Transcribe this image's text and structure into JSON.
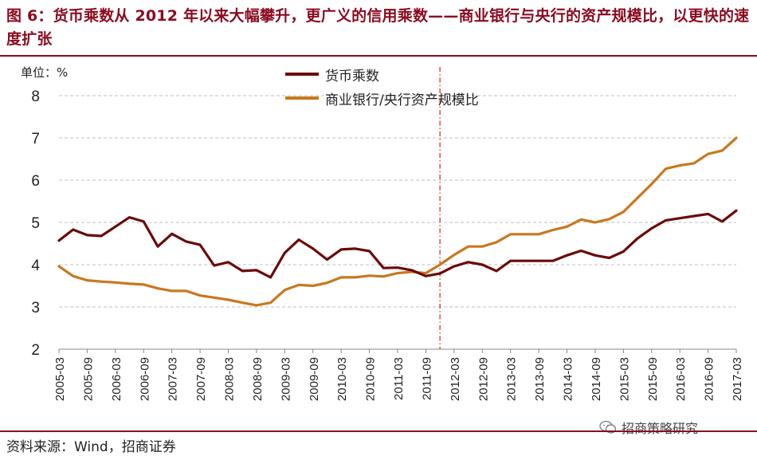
{
  "header": {
    "title": "图 6：货币乘数从 2012 年以来大幅攀升，更广义的信用乘数——商业银行与央行的资产规模比，以更快的速度扩张"
  },
  "footer": {
    "source": "资料来源：Wind，招商证券",
    "watermark": "招商策略研究"
  },
  "colors": {
    "brand": "#8B0A1F",
    "series1": "#6B0A0A",
    "series2": "#C8781E",
    "marker": "#D62020",
    "grid": "#BFBFBF"
  },
  "chart_data": {
    "type": "line",
    "unit_label": "单位：%",
    "ylim": [
      2,
      8
    ],
    "yticks": [
      "2",
      "3",
      "4",
      "5",
      "6",
      "7",
      "8"
    ],
    "grid": true,
    "x_tick_labels": [
      "2005-03",
      "2005-09",
      "2006-03",
      "2006-09",
      "2007-03",
      "2007-09",
      "2008-03",
      "2008-09",
      "2009-03",
      "2009-09",
      "2010-03",
      "2010-09",
      "2011-03",
      "2011-09",
      "2012-03",
      "2012-09",
      "2013-03",
      "2013-09",
      "2014-03",
      "2014-09",
      "2015-03",
      "2015-09",
      "2016-03",
      "2016-09",
      "2017-03"
    ],
    "x": [
      "2005-03",
      "2005-06",
      "2005-09",
      "2005-12",
      "2006-03",
      "2006-06",
      "2006-09",
      "2006-12",
      "2007-03",
      "2007-06",
      "2007-09",
      "2007-12",
      "2008-03",
      "2008-06",
      "2008-09",
      "2008-12",
      "2009-03",
      "2009-06",
      "2009-09",
      "2009-12",
      "2010-03",
      "2010-06",
      "2010-09",
      "2010-12",
      "2011-03",
      "2011-06",
      "2011-09",
      "2011-12",
      "2012-03",
      "2012-06",
      "2012-09",
      "2012-12",
      "2013-03",
      "2013-06",
      "2013-09",
      "2013-12",
      "2014-03",
      "2014-06",
      "2014-09",
      "2014-12",
      "2015-03",
      "2015-06",
      "2015-09",
      "2015-12",
      "2016-03",
      "2016-06",
      "2016-09",
      "2016-12",
      "2017-03"
    ],
    "vline_at": "2011-12",
    "legend_position": "top-center",
    "series": [
      {
        "name": "货币乘数",
        "values": [
          4.57,
          4.83,
          4.7,
          4.68,
          4.9,
          5.12,
          5.02,
          4.43,
          4.73,
          4.55,
          4.47,
          3.98,
          4.06,
          3.85,
          3.87,
          3.7,
          4.28,
          4.59,
          4.38,
          4.12,
          4.36,
          4.38,
          4.32,
          3.92,
          3.93,
          3.87,
          3.73,
          3.79,
          3.96,
          4.06,
          4.0,
          3.85,
          4.09,
          4.09,
          4.09,
          4.09,
          4.22,
          4.33,
          4.22,
          4.16,
          4.31,
          4.62,
          4.86,
          5.05,
          5.1,
          5.15,
          5.2,
          5.02,
          5.28
        ]
      },
      {
        "name": "商业银行/央行资产规模比",
        "values": [
          3.96,
          3.73,
          3.63,
          3.6,
          3.58,
          3.55,
          3.53,
          3.44,
          3.38,
          3.38,
          3.27,
          3.22,
          3.17,
          3.1,
          3.04,
          3.1,
          3.4,
          3.52,
          3.5,
          3.57,
          3.7,
          3.7,
          3.74,
          3.72,
          3.8,
          3.83,
          3.8,
          4.0,
          4.23,
          4.43,
          4.43,
          4.53,
          4.72,
          4.72,
          4.72,
          4.82,
          4.9,
          5.07,
          5.0,
          5.08,
          5.25,
          5.58,
          5.91,
          6.27,
          6.35,
          6.4,
          6.62,
          6.7,
          7.0
        ]
      }
    ]
  }
}
